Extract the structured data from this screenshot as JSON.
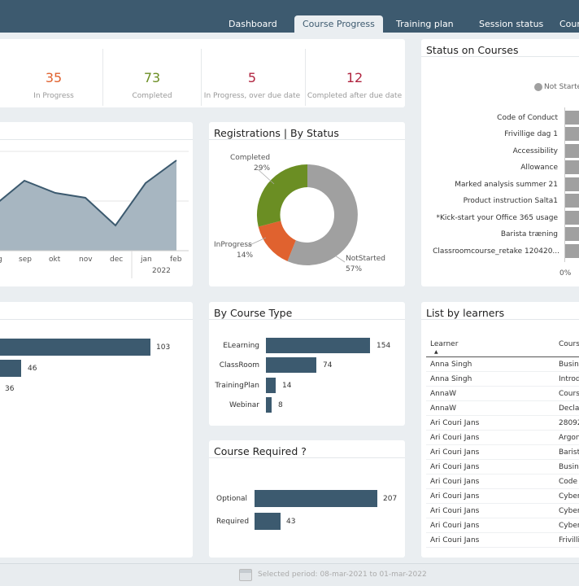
{
  "nav": {
    "tabs": [
      {
        "label": "Dashboard",
        "active": false
      },
      {
        "label": "Course Progress",
        "active": true
      },
      {
        "label": "Training plan",
        "active": false
      },
      {
        "label": "Session status",
        "active": false
      },
      {
        "label": "Cour",
        "active": false
      }
    ]
  },
  "kpis": [
    {
      "value": "35",
      "label": "In Progress",
      "color": "#e0622f"
    },
    {
      "value": "73",
      "label": "Completed",
      "color": "#6b8e23"
    },
    {
      "value": "5",
      "label": "In Progress, over due date",
      "color": "#b0243f"
    },
    {
      "value": "12",
      "label": "Completed after due date",
      "color": "#b0243f"
    }
  ],
  "line_chart": {
    "x_labels": [
      "g",
      "sep",
      "okt",
      "nov",
      "dec",
      "jan",
      "feb"
    ],
    "year_label": "2022"
  },
  "registrations": {
    "title": "Registrations | By Status",
    "completed_label": "Completed",
    "completed_pct": "29%",
    "inprogress_label": "InProgress",
    "inprogress_pct": "14%",
    "notstarted_label": "NotStarted",
    "notstarted_pct": "57%"
  },
  "status_courses": {
    "title": "Status on Courses",
    "legend": "Not Starte",
    "courses": [
      "Code of Conduct",
      "Frivillige dag 1",
      "Accessibility",
      "Allowance",
      "Marked analysis summer 21",
      "Product instruction Salta1",
      "*Kick-start your Office 365 usage",
      "Barista træning",
      "Classroomcourse_retake 120420..."
    ],
    "axis_start": "0%"
  },
  "left_bars": {
    "values": [
      "103",
      "46",
      "36"
    ]
  },
  "course_type": {
    "title": "By Course Type",
    "items": [
      {
        "label": "ELearning",
        "value": "154"
      },
      {
        "label": "ClassRoom",
        "value": "74"
      },
      {
        "label": "TrainingPlan",
        "value": "14"
      },
      {
        "label": "Webinar",
        "value": "8"
      }
    ]
  },
  "course_required": {
    "title": "Course Required ?",
    "items": [
      {
        "label": "Optional",
        "value": "207"
      },
      {
        "label": "Required",
        "value": "43"
      }
    ]
  },
  "learners": {
    "title": "List by learners",
    "col_learner": "Learner",
    "col_course": "Cours",
    "rows": [
      [
        "Anna Singh",
        "Busin"
      ],
      [
        "Anna Singh",
        "Introd"
      ],
      [
        "AnnaW",
        "Cours"
      ],
      [
        "AnnaW",
        "Declar"
      ],
      [
        "Ari Couri Jans",
        "28092"
      ],
      [
        "Ari Couri Jans",
        "Argon"
      ],
      [
        "Ari Couri Jans",
        "Barist"
      ],
      [
        "Ari Couri Jans",
        "Busin"
      ],
      [
        "Ari Couri Jans",
        "Code o"
      ],
      [
        "Ari Couri Jans",
        "Cyber"
      ],
      [
        "Ari Couri Jans",
        "Cyber"
      ],
      [
        "Ari Couri Jans",
        "Cyber"
      ],
      [
        "Ari Couri Jans",
        "Frivilli"
      ]
    ]
  },
  "footer": {
    "period": "Selected period: 08-mar-2021 to 01-mar-2022"
  }
}
